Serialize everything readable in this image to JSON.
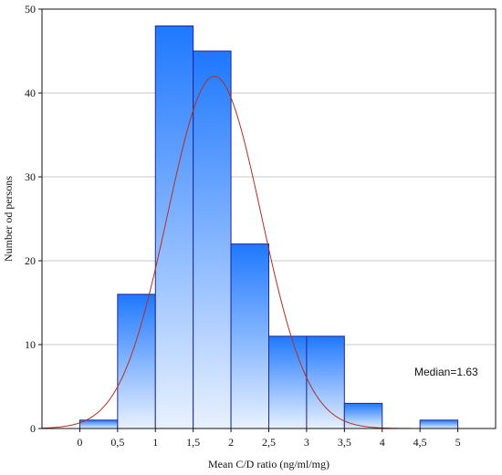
{
  "chart_data": {
    "type": "bar",
    "bins": [
      {
        "from": 0,
        "to": 0.5,
        "count": 1
      },
      {
        "from": 0.5,
        "to": 1,
        "count": 16
      },
      {
        "from": 1,
        "to": 1.5,
        "count": 48
      },
      {
        "from": 1.5,
        "to": 2,
        "count": 45
      },
      {
        "from": 2,
        "to": 2.5,
        "count": 22
      },
      {
        "from": 2.5,
        "to": 3,
        "count": 11
      },
      {
        "from": 3,
        "to": 3.5,
        "count": 11
      },
      {
        "from": 3.5,
        "to": 4,
        "count": 3
      },
      {
        "from": 4,
        "to": 4.5,
        "count": 0
      },
      {
        "from": 4.5,
        "to": 5,
        "count": 1
      }
    ],
    "fit_curve": {
      "type": "normal",
      "peak_x": 1.78,
      "peak_y": 42,
      "sd": 0.62,
      "color": "#b03020"
    },
    "xlabel": "Mean C/D ratio (ng/ml/mg)",
    "ylabel": "Number od persons",
    "xlim": [
      -0.5,
      5.5
    ],
    "ylim": [
      0,
      50
    ],
    "x_ticks": [
      "0",
      "0,5",
      "1",
      "1,5",
      "2",
      "2,5",
      "3",
      "3,5",
      "4",
      "4,5",
      "5"
    ],
    "x_tick_values": [
      0,
      0.5,
      1,
      1.5,
      2,
      2.5,
      3,
      3.5,
      4,
      4.5,
      5
    ],
    "y_ticks": [
      "0",
      "10",
      "20",
      "30",
      "40",
      "50"
    ],
    "y_tick_values": [
      0,
      10,
      20,
      30,
      40,
      50
    ],
    "annotation": "Median=1.63",
    "grid": "horizontal",
    "colors": {
      "bar_top": "#1f78ff",
      "bar_bottom": "#e8f1ff",
      "bar_edge": "#1c2a99",
      "grid": "#c8c8c8",
      "axis": "#111111"
    }
  }
}
